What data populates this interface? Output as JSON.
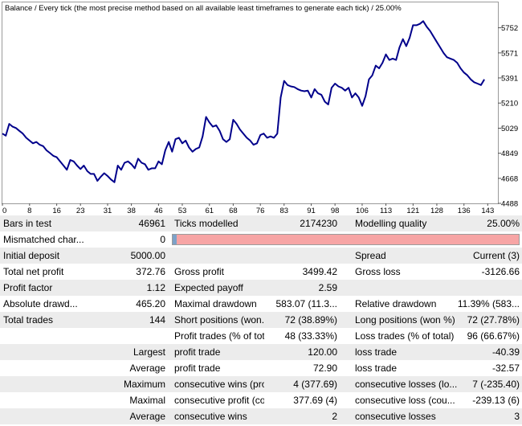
{
  "chart": {
    "caption": "Balance / Every tick (the most precise method based on all available least timeframes to generate each tick) / 25.00%",
    "y_ticks": [
      "5752",
      "5571",
      "5391",
      "5210",
      "5029",
      "4849",
      "4668",
      "4488"
    ],
    "x_ticks": [
      "0",
      "8",
      "16",
      "23",
      "31",
      "38",
      "46",
      "53",
      "61",
      "68",
      "76",
      "83",
      "91",
      "98",
      "106",
      "113",
      "121",
      "128",
      "136",
      "143"
    ],
    "line_color": "#00008b"
  },
  "chart_data": {
    "type": "line",
    "title": "Balance / Every tick (the most precise method based on all available least timeframes to generate each tick) / 25.00%",
    "xlim": [
      0,
      146
    ],
    "ylim": [
      4488,
      5842
    ],
    "series": [
      {
        "values": [
          [
            0,
            4990
          ],
          [
            1,
            4975
          ],
          [
            2,
            5060
          ],
          [
            3,
            5040
          ],
          [
            4,
            5030
          ],
          [
            5,
            5010
          ],
          [
            6,
            4990
          ],
          [
            7,
            4960
          ],
          [
            8,
            4940
          ],
          [
            9,
            4920
          ],
          [
            10,
            4930
          ],
          [
            11,
            4910
          ],
          [
            12,
            4900
          ],
          [
            13,
            4870
          ],
          [
            14,
            4850
          ],
          [
            15,
            4830
          ],
          [
            16,
            4820
          ],
          [
            17,
            4790
          ],
          [
            18,
            4760
          ],
          [
            19,
            4730
          ],
          [
            20,
            4800
          ],
          [
            21,
            4790
          ],
          [
            22,
            4760
          ],
          [
            23,
            4735
          ],
          [
            24,
            4760
          ],
          [
            25,
            4720
          ],
          [
            26,
            4700
          ],
          [
            27,
            4700
          ],
          [
            28,
            4650
          ],
          [
            29,
            4680
          ],
          [
            30,
            4705
          ],
          [
            31,
            4685
          ],
          [
            32,
            4660
          ],
          [
            33,
            4640
          ],
          [
            34,
            4760
          ],
          [
            35,
            4730
          ],
          [
            36,
            4780
          ],
          [
            37,
            4790
          ],
          [
            38,
            4770
          ],
          [
            39,
            4740
          ],
          [
            40,
            4810
          ],
          [
            41,
            4780
          ],
          [
            42,
            4770
          ],
          [
            43,
            4730
          ],
          [
            44,
            4740
          ],
          [
            45,
            4740
          ],
          [
            46,
            4790
          ],
          [
            47,
            4770
          ],
          [
            48,
            4870
          ],
          [
            49,
            4930
          ],
          [
            50,
            4860
          ],
          [
            51,
            4950
          ],
          [
            52,
            4960
          ],
          [
            53,
            4920
          ],
          [
            54,
            4940
          ],
          [
            55,
            4890
          ],
          [
            56,
            4860
          ],
          [
            57,
            4880
          ],
          [
            58,
            4890
          ],
          [
            59,
            4970
          ],
          [
            60,
            5110
          ],
          [
            61,
            5070
          ],
          [
            62,
            5040
          ],
          [
            63,
            5050
          ],
          [
            64,
            5010
          ],
          [
            65,
            4950
          ],
          [
            66,
            4930
          ],
          [
            67,
            4950
          ],
          [
            68,
            5090
          ],
          [
            69,
            5060
          ],
          [
            70,
            5020
          ],
          [
            71,
            4990
          ],
          [
            72,
            4960
          ],
          [
            73,
            4940
          ],
          [
            74,
            4910
          ],
          [
            75,
            4920
          ],
          [
            76,
            4980
          ],
          [
            77,
            4990
          ],
          [
            78,
            4960
          ],
          [
            79,
            4970
          ],
          [
            80,
            4960
          ],
          [
            81,
            4990
          ],
          [
            82,
            5250
          ],
          [
            83,
            5370
          ],
          [
            84,
            5340
          ],
          [
            85,
            5330
          ],
          [
            86,
            5325
          ],
          [
            87,
            5310
          ],
          [
            88,
            5300
          ],
          [
            89,
            5295
          ],
          [
            90,
            5300
          ],
          [
            91,
            5250
          ],
          [
            92,
            5310
          ],
          [
            93,
            5280
          ],
          [
            94,
            5270
          ],
          [
            95,
            5220
          ],
          [
            96,
            5200
          ],
          [
            97,
            5320
          ],
          [
            98,
            5350
          ],
          [
            99,
            5330
          ],
          [
            100,
            5320
          ],
          [
            101,
            5300
          ],
          [
            102,
            5320
          ],
          [
            103,
            5250
          ],
          [
            104,
            5280
          ],
          [
            105,
            5250
          ],
          [
            106,
            5190
          ],
          [
            107,
            5260
          ],
          [
            108,
            5380
          ],
          [
            109,
            5410
          ],
          [
            110,
            5480
          ],
          [
            111,
            5460
          ],
          [
            112,
            5500
          ],
          [
            113,
            5560
          ],
          [
            114,
            5520
          ],
          [
            115,
            5530
          ],
          [
            116,
            5520
          ],
          [
            117,
            5610
          ],
          [
            118,
            5670
          ],
          [
            119,
            5620
          ],
          [
            120,
            5680
          ],
          [
            121,
            5770
          ],
          [
            122,
            5770
          ],
          [
            123,
            5780
          ],
          [
            124,
            5800
          ],
          [
            125,
            5760
          ],
          [
            126,
            5730
          ],
          [
            127,
            5690
          ],
          [
            128,
            5650
          ],
          [
            129,
            5610
          ],
          [
            130,
            5570
          ],
          [
            131,
            5540
          ],
          [
            132,
            5530
          ],
          [
            133,
            5520
          ],
          [
            134,
            5500
          ],
          [
            135,
            5460
          ],
          [
            136,
            5430
          ],
          [
            137,
            5410
          ],
          [
            138,
            5380
          ],
          [
            139,
            5360
          ],
          [
            140,
            5350
          ],
          [
            141,
            5340
          ],
          [
            142,
            5380
          ]
        ]
      }
    ]
  },
  "report": {
    "rows": [
      {
        "shade": true,
        "c1": "Bars in test",
        "v1": "46961",
        "c2": "Ticks modelled",
        "v2": "2174230",
        "c3": "Modelling quality",
        "v3": "25.00%"
      },
      {
        "shade": false,
        "c1": "Mismatched char...",
        "v1": "0",
        "mismatch_bar": true
      },
      {
        "shade": true,
        "c1": "Initial deposit",
        "v1": "5000.00",
        "c2": "",
        "v2": "",
        "c3": "Spread",
        "v3": "Current (3)"
      },
      {
        "shade": false,
        "c1": "Total net profit",
        "v1": "372.76",
        "c2": "Gross profit",
        "v2": "3499.42",
        "c3": "Gross loss",
        "v3": "-3126.66"
      },
      {
        "shade": true,
        "c1": "Profit factor",
        "v1": "1.12",
        "c2": "Expected payoff",
        "v2": "2.59",
        "c3": "",
        "v3": ""
      },
      {
        "shade": false,
        "c1": "Absolute drawd...",
        "v1": "465.20",
        "c2": "Maximal drawdown",
        "v2": "583.07 (11.3...",
        "c3": "Relative drawdown",
        "v3": "11.39% (583..."
      },
      {
        "shade": true,
        "c1": "Total trades",
        "v1": "144",
        "c2": "Short positions (won...",
        "v2": "72 (38.89%)",
        "c3": "Long positions (won %)",
        "v3": "72 (27.78%)"
      },
      {
        "shade": false,
        "c1": "",
        "v1": "",
        "c2": "Profit trades (% of tot...",
        "v2": "48 (33.33%)",
        "c3": "Loss trades (% of total)",
        "v3": "96 (66.67%)"
      },
      {
        "shade": true,
        "c1": "",
        "v1": "Largest",
        "c2": "profit trade",
        "v2": "120.00",
        "c3": "loss trade",
        "v3": "-40.39"
      },
      {
        "shade": false,
        "c1": "",
        "v1": "Average",
        "c2": "profit trade",
        "v2": "72.90",
        "c3": "loss trade",
        "v3": "-32.57"
      },
      {
        "shade": true,
        "c1": "",
        "v1": "Maximum",
        "c2": "consecutive wins (pro...",
        "v2": "4 (377.69)",
        "c3": "consecutive losses (lo...",
        "v3": "7 (-235.40)"
      },
      {
        "shade": false,
        "c1": "",
        "v1": "Maximal",
        "c2": "consecutive profit (co...",
        "v2": "377.69 (4)",
        "c3": "consecutive loss (cou...",
        "v3": "-239.13 (6)"
      },
      {
        "shade": true,
        "c1": "",
        "v1": "Average",
        "c2": "consecutive wins",
        "v2": "2",
        "c3": "consecutive losses",
        "v3": "3"
      }
    ]
  }
}
